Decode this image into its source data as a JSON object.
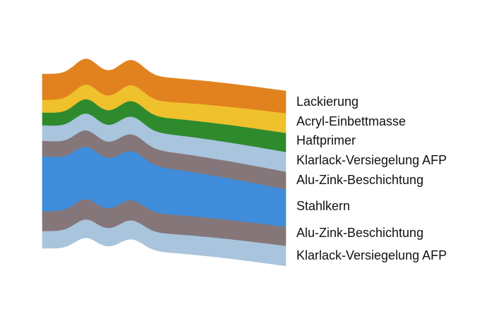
{
  "layers": [
    {
      "label": "Lackierung",
      "color": "#e2821e"
    },
    {
      "label": "Acryl-Einbettmasse",
      "color": "#efc12d"
    },
    {
      "label": "Haftprimer",
      "color": "#2f8a2e"
    },
    {
      "label": "Klarlack-Versiegelung AFP",
      "color": "#a9c4dd"
    },
    {
      "label": "Alu-Zink-Beschichtung",
      "color": "#857679"
    },
    {
      "label": "Stahlkern",
      "color": "#3f8ddb"
    },
    {
      "label": "Alu-Zink-Beschichtung",
      "color": "#857679"
    },
    {
      "label": "Klarlack-Versiegelung AFP",
      "color": "#a9c4dd"
    }
  ]
}
